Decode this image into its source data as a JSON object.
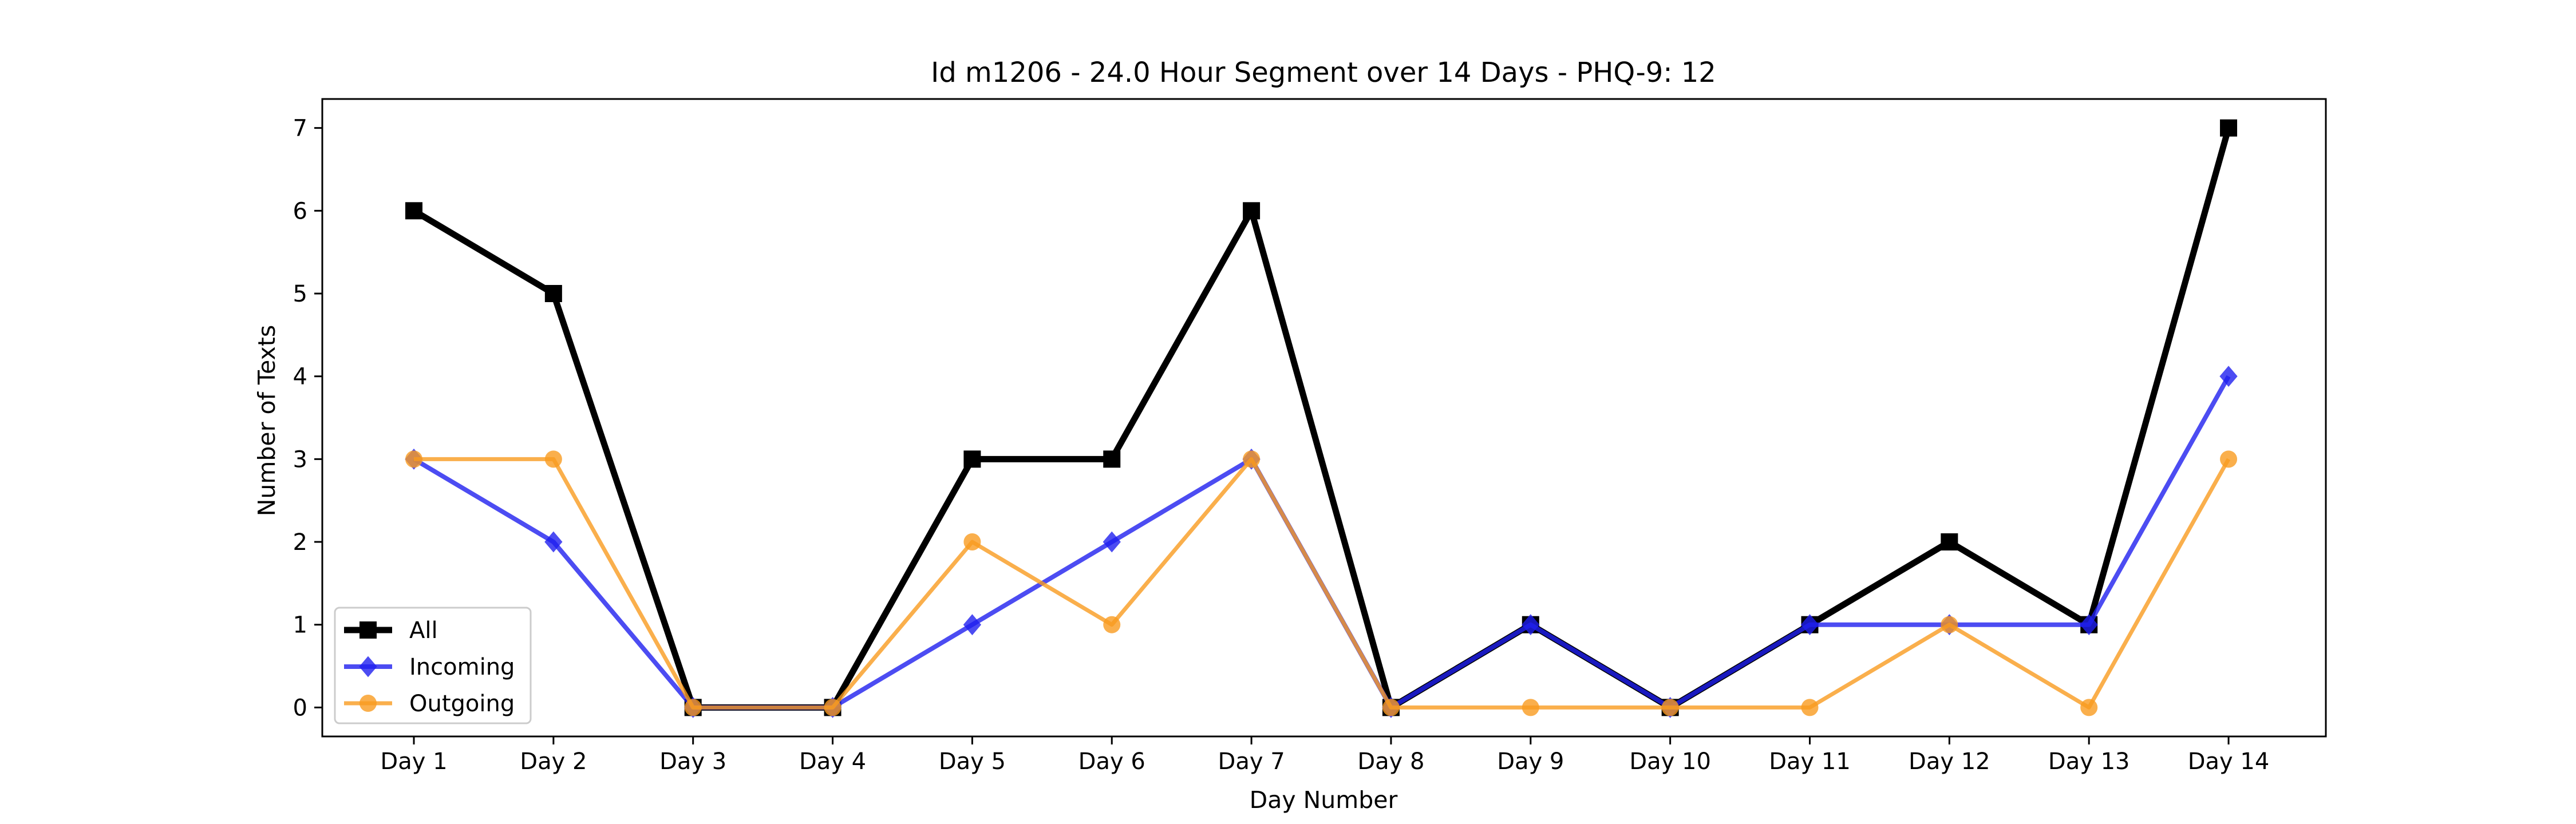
{
  "chart_data": {
    "type": "line",
    "title": "Id m1206 - 24.0 Hour Segment over 14 Days - PHQ-9: 12",
    "xlabel": "Day Number",
    "ylabel": "Number of Texts",
    "categories": [
      "Day 1",
      "Day 2",
      "Day 3",
      "Day 4",
      "Day 5",
      "Day 6",
      "Day 7",
      "Day 8",
      "Day 9",
      "Day 10",
      "Day 11",
      "Day 12",
      "Day 13",
      "Day 14"
    ],
    "yticks": [
      0,
      1,
      2,
      3,
      4,
      5,
      6,
      7
    ],
    "ylim": [
      -0.35,
      7.35
    ],
    "grid": false,
    "legend_position": "lower-left",
    "series": [
      {
        "name": "All",
        "color": "#000000",
        "marker": "square",
        "values": [
          6,
          5,
          0,
          0,
          3,
          3,
          6,
          0,
          1,
          0,
          1,
          2,
          1,
          7
        ]
      },
      {
        "name": "Incoming",
        "color": "#1f1fef",
        "marker": "diamond",
        "values": [
          3,
          2,
          0,
          0,
          1,
          2,
          3,
          0,
          1,
          0,
          1,
          1,
          1,
          4
        ]
      },
      {
        "name": "Outgoing",
        "color": "#f99b1f",
        "marker": "circle",
        "values": [
          3,
          3,
          0,
          0,
          2,
          1,
          3,
          0,
          0,
          0,
          0,
          1,
          0,
          3
        ]
      }
    ]
  }
}
